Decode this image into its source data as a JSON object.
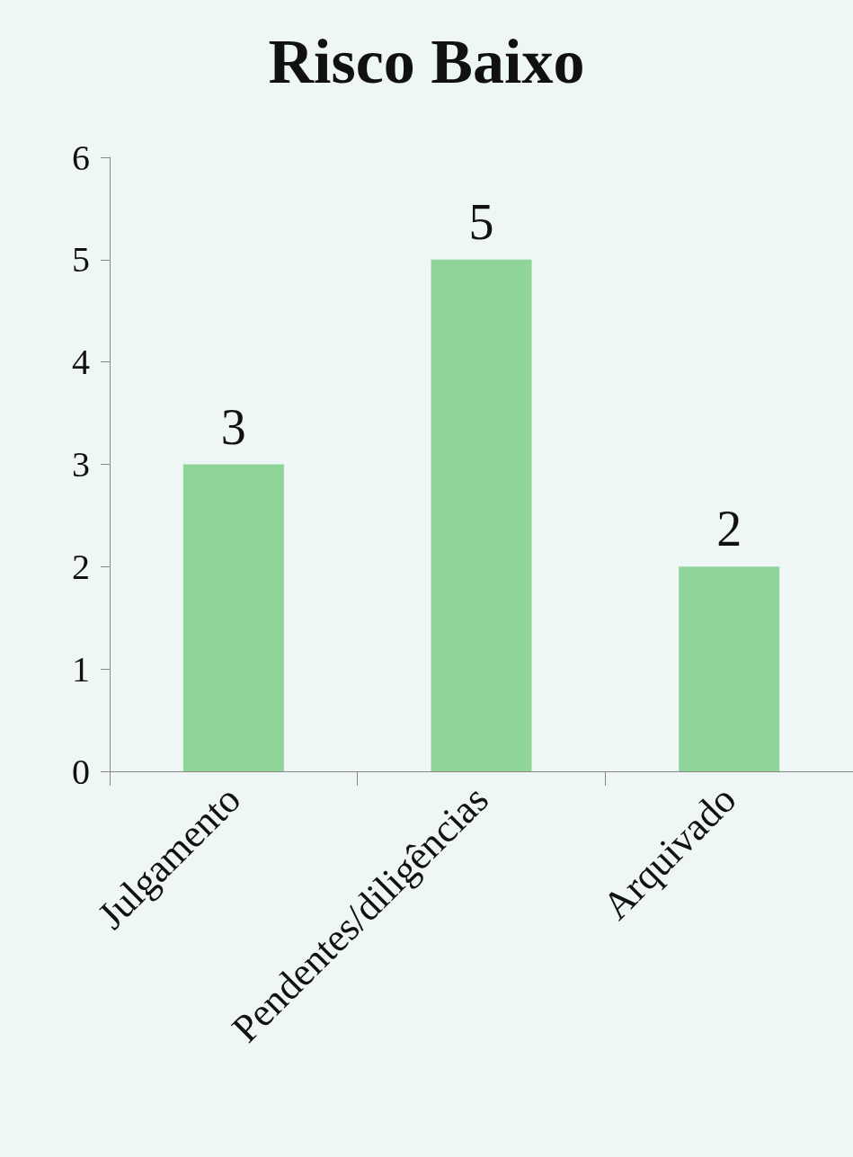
{
  "chart_data": {
    "type": "bar",
    "title": "Risco Baixo",
    "categories": [
      "Julgamento",
      "Pendentes/diligências",
      "Arquivado"
    ],
    "values": [
      3,
      5,
      2
    ],
    "color": "#8fd498",
    "ylim": [
      0,
      6
    ],
    "yticks": [
      0,
      1,
      2,
      3,
      4,
      5,
      6
    ],
    "grid": false,
    "data_labels": true
  }
}
